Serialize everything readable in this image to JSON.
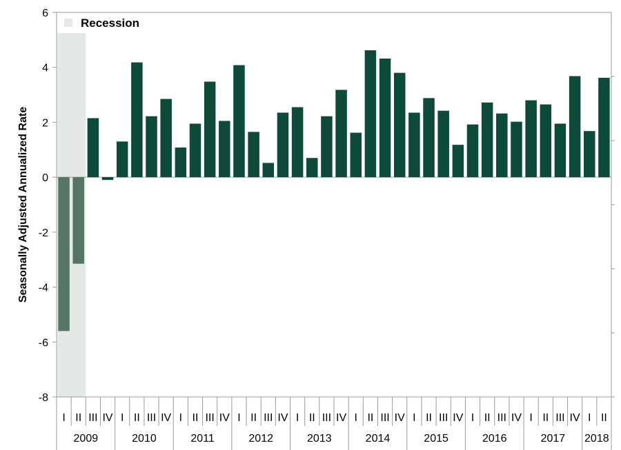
{
  "chart_data": {
    "type": "bar",
    "ylabel": "Seasonally Adjusted Annualized Rate",
    "xlabel": "",
    "ylim": [
      -8,
      6
    ],
    "yticks": [
      6,
      4,
      2,
      0,
      -2,
      -4,
      -6,
      -8
    ],
    "legend": {
      "label": "Recession",
      "placement": "top-left"
    },
    "colors": {
      "bar": "#0d4a3a",
      "recession_bar": "#557565",
      "recession_band": "#e5e9e6",
      "axis": "#999999"
    },
    "recession_quarters": [
      0,
      1
    ],
    "years": [
      {
        "label": "2009",
        "quarters": [
          "I",
          "II",
          "III",
          "IV"
        ]
      },
      {
        "label": "2010",
        "quarters": [
          "I",
          "II",
          "III",
          "IV"
        ]
      },
      {
        "label": "2011",
        "quarters": [
          "I",
          "II",
          "III",
          "IV"
        ]
      },
      {
        "label": "2012",
        "quarters": [
          "I",
          "II",
          "III",
          "IV"
        ]
      },
      {
        "label": "2013",
        "quarters": [
          "I",
          "II",
          "III",
          "IV"
        ]
      },
      {
        "label": "2014",
        "quarters": [
          "I",
          "II",
          "III",
          "IV"
        ]
      },
      {
        "label": "2015",
        "quarters": [
          "I",
          "II",
          "III",
          "IV"
        ]
      },
      {
        "label": "2016",
        "quarters": [
          "I",
          "II",
          "III",
          "IV"
        ]
      },
      {
        "label": "2017",
        "quarters": [
          "I",
          "II",
          "III",
          "IV"
        ]
      },
      {
        "label": "2018",
        "quarters": [
          "I",
          "II"
        ]
      }
    ],
    "values": [
      -5.6,
      -3.15,
      2.15,
      -0.1,
      1.3,
      4.18,
      2.22,
      2.85,
      1.08,
      1.95,
      3.48,
      2.05,
      4.08,
      1.65,
      0.52,
      2.35,
      2.55,
      0.7,
      2.22,
      3.18,
      1.62,
      4.62,
      4.32,
      3.8,
      2.35,
      2.88,
      2.42,
      1.18,
      1.92,
      2.72,
      2.32,
      2.02,
      2.8,
      2.65,
      1.95,
      3.68,
      1.68,
      3.62
    ]
  }
}
